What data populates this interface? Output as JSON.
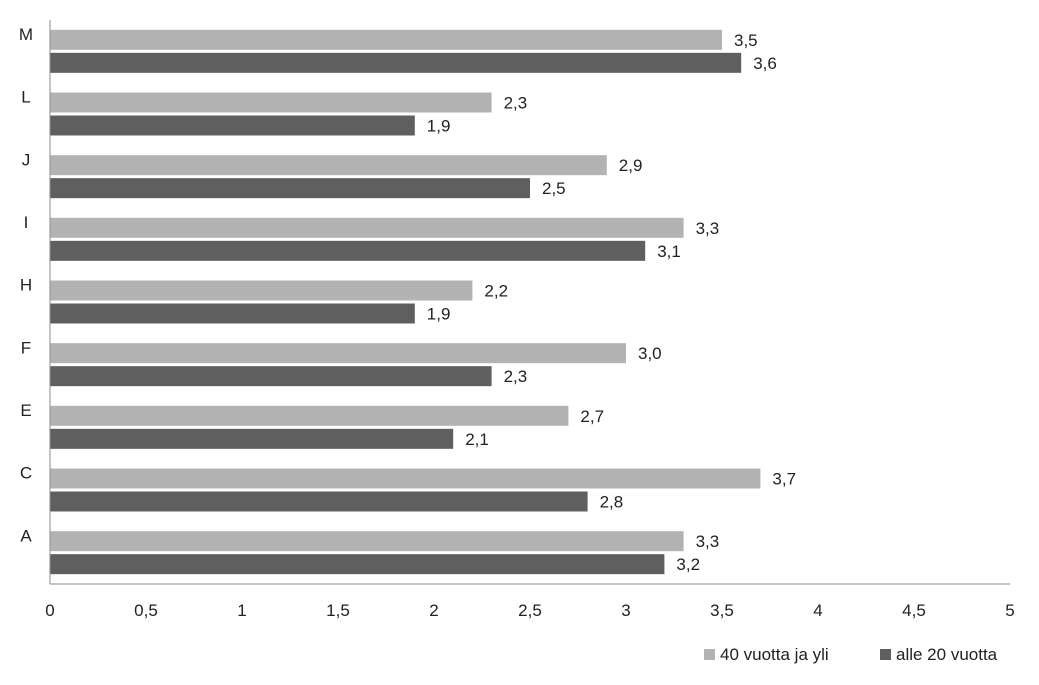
{
  "chart_data": {
    "type": "bar",
    "orientation": "horizontal",
    "categories": [
      "A",
      "C",
      "E",
      "F",
      "H",
      "I",
      "J",
      "L",
      "M"
    ],
    "series": [
      {
        "name": "40 vuotta ja yli",
        "color": "#b3b3b3",
        "values": [
          3.3,
          3.7,
          2.7,
          3.0,
          2.2,
          3.3,
          2.9,
          2.3,
          3.5
        ],
        "labels": [
          "3,3",
          "3,7",
          "2,7",
          "3,0",
          "2,2",
          "3,3",
          "2,9",
          "2,3",
          "3,5"
        ]
      },
      {
        "name": "alle 20 vuotta",
        "color": "#5f5f5f",
        "values": [
          3.2,
          2.8,
          2.1,
          2.3,
          1.9,
          3.1,
          2.5,
          1.9,
          3.6
        ],
        "labels": [
          "3,2",
          "2,8",
          "2,1",
          "2,3",
          "1,9",
          "3,1",
          "2,5",
          "1,9",
          "3,6"
        ]
      }
    ],
    "xlim": [
      0,
      5
    ],
    "xticks": [
      0,
      0.5,
      1,
      1.5,
      2,
      2.5,
      3,
      3.5,
      4,
      4.5,
      5
    ],
    "xtick_labels": [
      "0",
      "0,5",
      "1",
      "1,5",
      "2",
      "2,5",
      "3",
      "3,5",
      "4",
      "4,5",
      "5"
    ],
    "title": "",
    "xlabel": "",
    "ylabel": "",
    "grid": false,
    "legend_position": "bottom-right"
  }
}
